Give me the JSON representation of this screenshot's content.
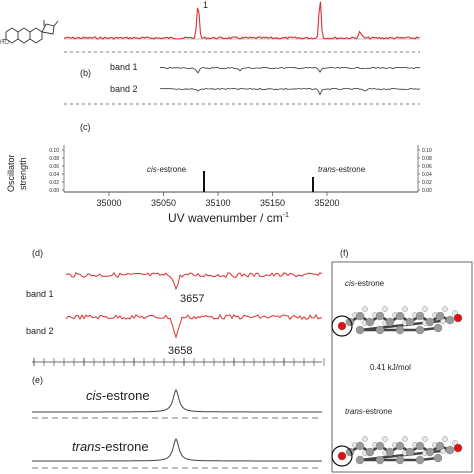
{
  "panel_a": {
    "peak_label": "1"
  },
  "panel_b": {
    "label": "(b)",
    "band1": "band 1",
    "band2": "band 2"
  },
  "panel_c": {
    "label": "(c)",
    "ylabel_line1": "Oscillator",
    "ylabel_line2": "strength",
    "yticks_left": [
      "0.10",
      "0.08",
      "0.06",
      "0.04",
      "0.02",
      "0.00"
    ],
    "yticks_right": [
      "0.10",
      "0.08",
      "0.06",
      "0.04",
      "0.02",
      "0.00"
    ],
    "xticks": [
      "35000",
      "35050",
      "35100",
      "35150",
      "35200"
    ],
    "xlabel": "UV wavenumber / cm",
    "xlabel_sup": "-1",
    "cis_prefix": "cis",
    "cis_suffix": "-estrone",
    "trans_prefix": "trans",
    "trans_suffix": "-estrone"
  },
  "panel_d": {
    "label": "(d)",
    "band1": "band 1",
    "band2": "band 2",
    "peak1": "3657",
    "peak2": "3658"
  },
  "panel_e": {
    "label": "(e)",
    "cis_prefix": "cis",
    "cis_suffix": "-estrone",
    "trans_prefix": "trans",
    "trans_suffix": "-estrone"
  },
  "panel_f": {
    "label": "(f)",
    "cis_prefix": "cis",
    "cis_suffix": "-estrone",
    "energy": "0.41 kJ/mol",
    "trans_prefix": "trans",
    "trans_suffix": "-estrone"
  },
  "colors": {
    "spectrum": "#d93030",
    "trace": "#333333",
    "oxygen": "#e01010",
    "carbon": "#9a9a9a",
    "hydrogen": "#e8e8e8"
  }
}
